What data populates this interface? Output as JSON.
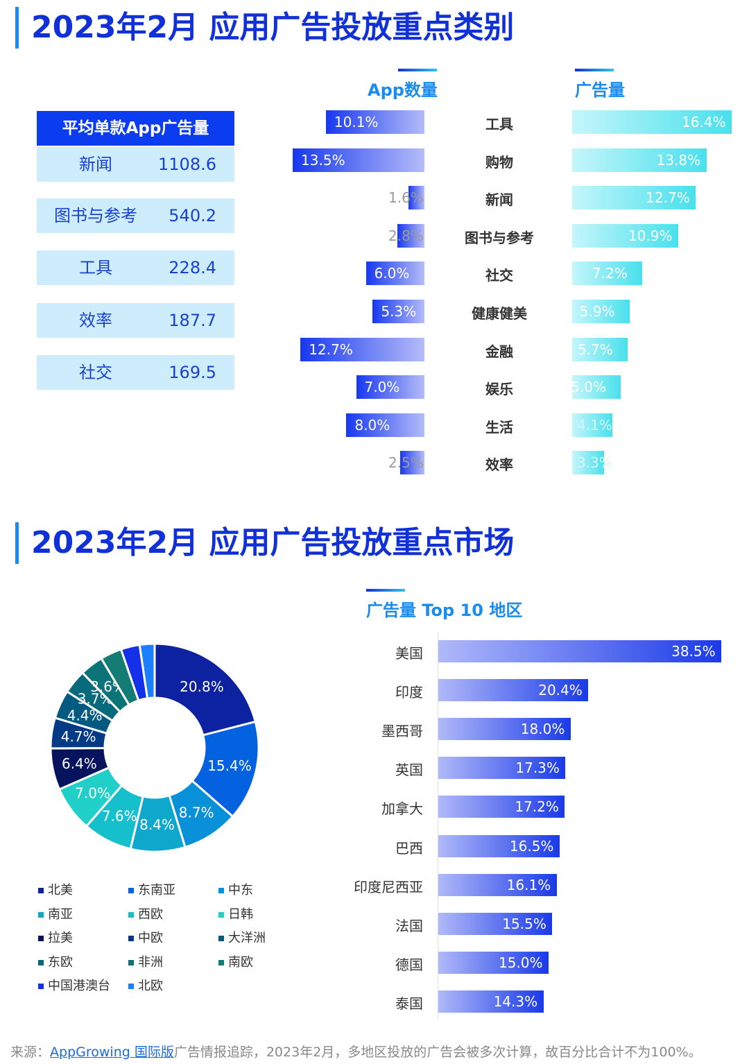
{
  "section1": {
    "title": "2023年2月 应用广告投放重点类别",
    "table": {
      "header": "平均单款App广告量",
      "rows": [
        {
          "name": "新闻",
          "value": "1108.6"
        },
        {
          "name": "图书与参考",
          "value": "540.2"
        },
        {
          "name": "工具",
          "value": "228.4"
        },
        {
          "name": "效率",
          "value": "187.7"
        },
        {
          "name": "社交",
          "value": "169.5"
        }
      ]
    }
  },
  "chart_data": [
    {
      "type": "bar",
      "orientation": "horizontal-butterfly",
      "categories": [
        "工具",
        "购物",
        "新闻",
        "图书与参考",
        "社交",
        "健康健美",
        "金融",
        "娱乐",
        "生活",
        "效率"
      ],
      "series": [
        {
          "name": "App数量",
          "values": [
            10.1,
            13.5,
            1.6,
            2.8,
            6.0,
            5.3,
            12.7,
            7.0,
            8.0,
            2.5
          ],
          "labels": [
            "10.1%",
            "13.5%",
            "1.6%",
            "2.8%",
            "6.0%",
            "5.3%",
            "12.7%",
            "7.0%",
            "8.0%",
            "2.5%"
          ]
        },
        {
          "name": "广告量",
          "values": [
            16.4,
            13.8,
            12.7,
            10.9,
            7.2,
            5.9,
            5.7,
            5.0,
            4.1,
            3.3
          ],
          "labels": [
            "16.4%",
            "13.8%",
            "12.7%",
            "10.9%",
            "7.2%",
            "5.9%",
            "5.7%",
            "5.0%",
            "4.1%",
            "3.3%"
          ]
        }
      ],
      "unit": "%"
    },
    {
      "type": "pie",
      "style": "donut",
      "categories": [
        "北美",
        "东南亚",
        "中东",
        "南亚",
        "西欧",
        "日韩",
        "拉美",
        "中欧",
        "大洋洲",
        "东欧",
        "非洲",
        "南欧",
        "中国港澳台",
        "北欧"
      ],
      "values": [
        20.8,
        15.4,
        8.7,
        8.4,
        7.6,
        7.0,
        6.4,
        4.7,
        4.4,
        3.7,
        3.6,
        3.3,
        2.9,
        2.3
      ],
      "labels": [
        "20.8%",
        "15.4%",
        "8.7%",
        "8.4%",
        "7.6%",
        "7.0%",
        "6.4%",
        "4.7%",
        "4.4%",
        "3.7%",
        "3.6%",
        "",
        "",
        ""
      ],
      "colors": [
        "#0d22a0",
        "#0462e0",
        "#0890d8",
        "#0ea8cc",
        "#16bfcc",
        "#20cfc8",
        "#08135e",
        "#023a86",
        "#025a80",
        "#066a7c",
        "#0c7478",
        "#147c74",
        "#1430e8",
        "#1a80ff"
      ],
      "legend": "bottom"
    },
    {
      "type": "bar",
      "orientation": "horizontal",
      "title": "广告量 Top 10 地区",
      "categories": [
        "美国",
        "印度",
        "墨西哥",
        "英国",
        "加拿大",
        "巴西",
        "印度尼西亚",
        "法国",
        "德国",
        "泰国"
      ],
      "values": [
        38.5,
        20.4,
        18.0,
        17.3,
        17.2,
        16.5,
        16.1,
        15.5,
        15.0,
        14.3
      ],
      "labels": [
        "38.5%",
        "20.4%",
        "18.0%",
        "17.3%",
        "17.2%",
        "16.5%",
        "16.1%",
        "15.5%",
        "15.0%",
        "14.3%"
      ],
      "unit": "%"
    }
  ],
  "section2": {
    "title": "2023年2月 应用广告投放重点市场"
  },
  "footer": {
    "prefix": "来源：",
    "link": "AppGrowing 国际版",
    "text": "广告情报追踪，2023年2月，多地区投放的广告会被多次计算，故百分比合计不为100%。"
  }
}
